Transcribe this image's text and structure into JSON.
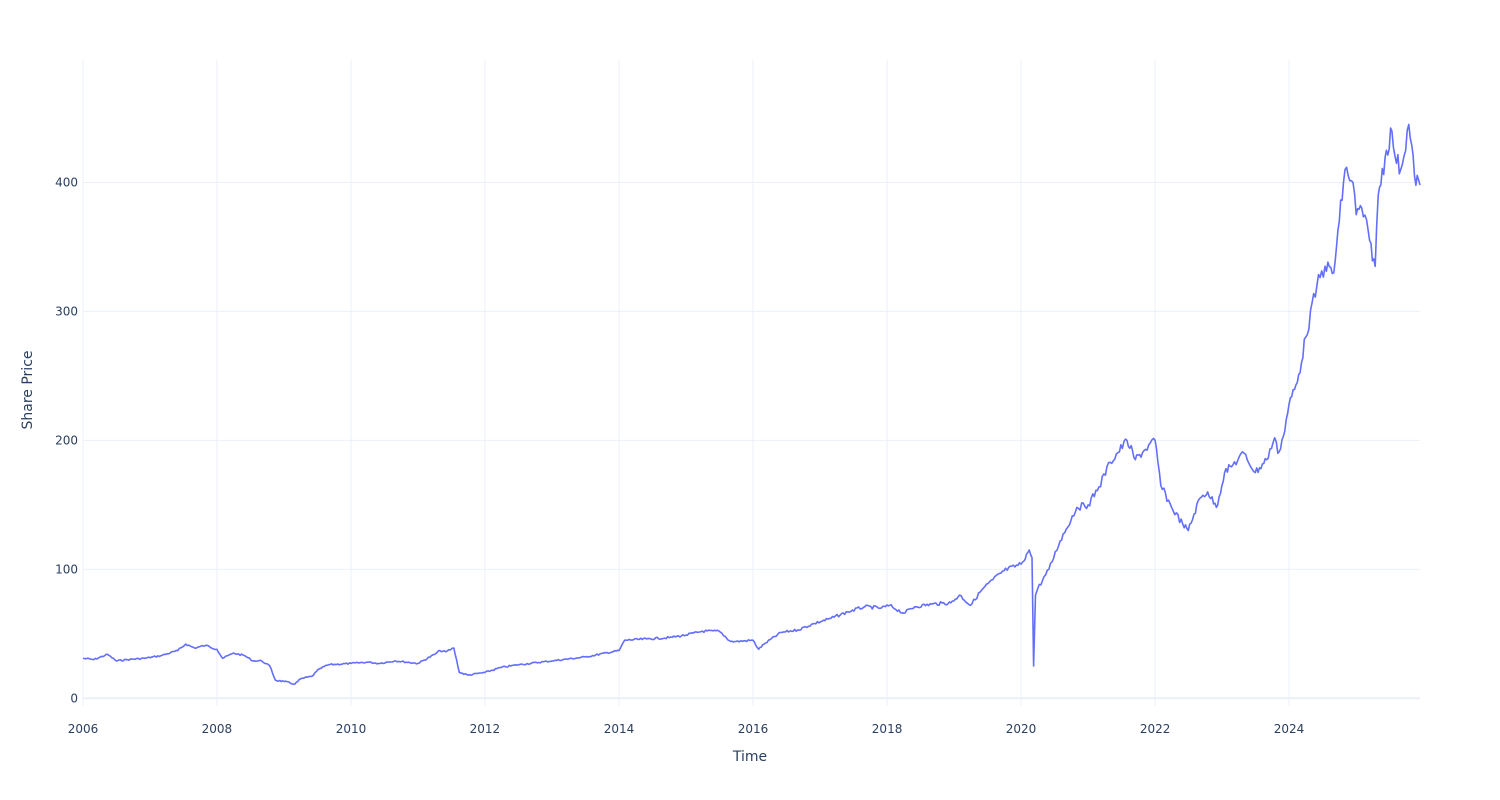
{
  "chart_data": {
    "type": "line",
    "title": "",
    "xlabel": "Time",
    "ylabel": "Share Price",
    "x_ticks": [
      "2006",
      "2008",
      "2010",
      "2012",
      "2014",
      "2016",
      "2018",
      "2020",
      "2022",
      "2024"
    ],
    "y_ticks": [
      "0",
      "100",
      "200",
      "300",
      "400"
    ],
    "xlim": [
      "2006-01-01",
      "2025-12-15"
    ],
    "ylim": [
      -6,
      495
    ],
    "grid": true,
    "legend": "none",
    "series": [
      {
        "color": "#636efa",
        "x": [
          "2006-01-01",
          "2006-03-01",
          "2006-05-15",
          "2006-07-01",
          "2006-09-01",
          "2006-12-01",
          "2007-03-01",
          "2007-06-01",
          "2007-07-15",
          "2007-09-01",
          "2007-11-01",
          "2008-01-01",
          "2008-02-01",
          "2008-04-01",
          "2008-06-01",
          "2008-07-15",
          "2008-09-01",
          "2008-10-15",
          "2008-11-15",
          "2009-01-01",
          "2009-03-01",
          "2009-04-01",
          "2009-06-01",
          "2009-07-15",
          "2009-09-01",
          "2010-01-01",
          "2010-04-01",
          "2010-06-01",
          "2010-09-01",
          "2011-01-01",
          "2011-04-01",
          "2011-05-01",
          "2011-06-01",
          "2011-07-15",
          "2011-08-15",
          "2011-10-01",
          "2012-01-01",
          "2012-04-01",
          "2012-07-01",
          "2013-01-01",
          "2013-07-01",
          "2014-01-01",
          "2014-02-01",
          "2014-06-01",
          "2014-10-01",
          "2015-01-01",
          "2015-04-01",
          "2015-07-01",
          "2015-09-01",
          "2015-10-01",
          "2016-01-01",
          "2016-02-01",
          "2016-03-01",
          "2016-06-01",
          "2016-09-01",
          "2016-12-01",
          "2017-03-01",
          "2017-06-01",
          "2017-09-01",
          "2017-12-01",
          "2018-01-15",
          "2018-04-01",
          "2018-06-01",
          "2018-09-01",
          "2018-12-15",
          "2019-02-01",
          "2019-04-01",
          "2019-06-01",
          "2019-08-01",
          "2019-10-01",
          "2020-01-01",
          "2020-02-15",
          "2020-03-01",
          "2020-03-10",
          "2020-03-20",
          "2020-04-01",
          "2020-06-01",
          "2020-08-01",
          "2020-11-01",
          "2021-01-01",
          "2021-03-01",
          "2021-05-01",
          "2021-08-01",
          "2021-09-15",
          "2021-11-01",
          "2022-01-01",
          "2022-02-01",
          "2022-04-01",
          "2022-06-01",
          "2022-07-01",
          "2022-09-01",
          "2022-10-15",
          "2022-12-01",
          "2023-01-15",
          "2023-03-01",
          "2023-05-01",
          "2023-07-01",
          "2023-09-01",
          "2023-10-15",
          "2023-11-01",
          "2023-12-01",
          "2024-01-01",
          "2024-02-15",
          "2024-04-01",
          "2024-06-01",
          "2024-07-15",
          "2024-09-01",
          "2024-10-01",
          "2024-11-01",
          "2024-12-15",
          "2025-01-01",
          "2025-02-01",
          "2025-03-15",
          "2025-04-15",
          "2025-05-01",
          "2025-06-15",
          "2025-07-15",
          "2025-08-01",
          "2025-09-01",
          "2025-10-15",
          "2025-11-15",
          "2025-12-15"
        ],
        "values": [
          31,
          30,
          34,
          29,
          30,
          31,
          33,
          37,
          42,
          39,
          41,
          38,
          31,
          35,
          33,
          29,
          29,
          25,
          14,
          13,
          11,
          15,
          17,
          23,
          26,
          27,
          28,
          27,
          29,
          27,
          34,
          37,
          36,
          39,
          20,
          18,
          20,
          24,
          26,
          29,
          32,
          37,
          45,
          46,
          47,
          49,
          52,
          52,
          44,
          44,
          45,
          38,
          42,
          51,
          53,
          58,
          62,
          67,
          71,
          70,
          72,
          66,
          71,
          73,
          74,
          80,
          72,
          84,
          92,
          99,
          104,
          115,
          109,
          25,
          80,
          85,
          100,
          122,
          148,
          150,
          164,
          183,
          200,
          185,
          192,
          200,
          165,
          148,
          135,
          130,
          155,
          160,
          148,
          175,
          181,
          190,
          175,
          185,
          202,
          190,
          203,
          228,
          245,
          280,
          320,
          335,
          330,
          370,
          410,
          400,
          375,
          380,
          355,
          335,
          390,
          425,
          440,
          420,
          410,
          445,
          405,
          398
        ]
      }
    ]
  }
}
